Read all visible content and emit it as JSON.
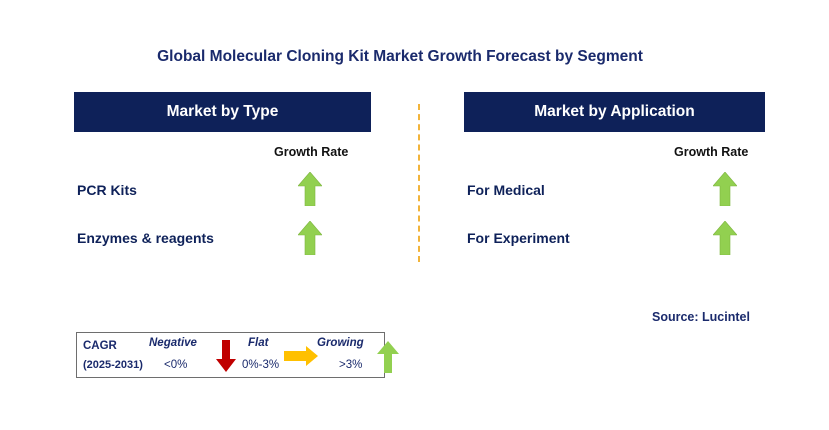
{
  "title": "Global Molecular Cloning Kit Market Growth Forecast by Segment",
  "left_panel": {
    "header": "Market by Type",
    "growth_label": "Growth Rate",
    "rows": [
      {
        "label": "PCR Kits",
        "trend": "growing"
      },
      {
        "label": "Enzymes & reagents",
        "trend": "growing"
      }
    ]
  },
  "right_panel": {
    "header": "Market by Application",
    "growth_label": "Growth Rate",
    "rows": [
      {
        "label": "For Medical",
        "trend": "growing"
      },
      {
        "label": "For Experiment",
        "trend": "growing"
      }
    ]
  },
  "legend": {
    "cagr_label": "CAGR",
    "period": "(2025-2031)",
    "negative": {
      "label": "Negative",
      "range": "<0%",
      "color": "#c00000",
      "icon": "down-arrow-icon"
    },
    "flat": {
      "label": "Flat",
      "range": "0%-3%",
      "color": "#ffc000",
      "icon": "right-arrow-icon"
    },
    "growing": {
      "label": "Growing",
      "range": ">3%",
      "color": "#92d050",
      "icon": "up-arrow-icon"
    }
  },
  "source": "Source: Lucintel",
  "colors": {
    "header_bg": "#0e2159",
    "title_text": "#1a2a6c",
    "divider": "#f2b43a",
    "growth_arrow": "#92d050"
  }
}
